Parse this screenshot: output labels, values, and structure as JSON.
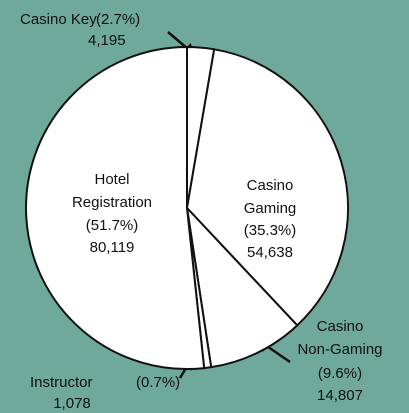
{
  "chart_data": {
    "type": "pie",
    "categories": [
      "Casino Key",
      "Casino Gaming",
      "Casino Non-Gaming",
      "Instructor",
      "Hotel Registration"
    ],
    "values": [
      2.7,
      35.3,
      9.6,
      0.7,
      51.7
    ],
    "value_labels": [
      "(2.7%)",
      "(35.3%)",
      "(9.6%)",
      "(0.7%)",
      "(51.7%)"
    ],
    "count_labels": [
      "4,195",
      "54,638",
      "14,807",
      "1,078",
      "80,119"
    ],
    "color": "#ffffff"
  }
}
